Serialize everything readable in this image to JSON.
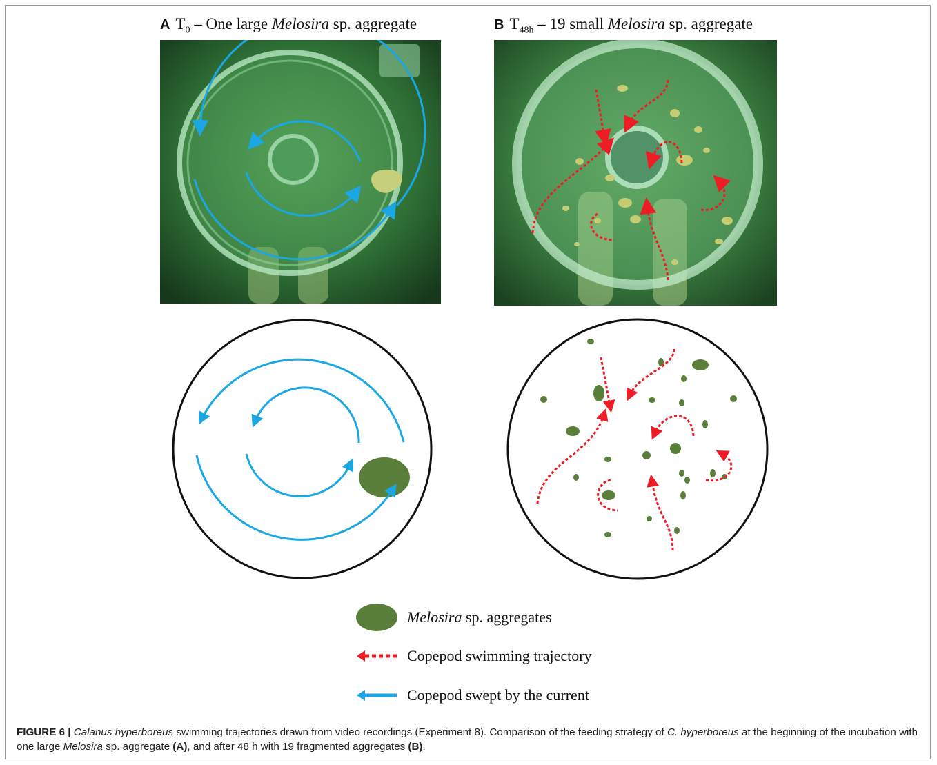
{
  "panel_a": {
    "letter": "A",
    "time_base": "T",
    "time_sub": "0",
    "title_pre": " – One large ",
    "title_italic": "Melosira",
    "title_post": " sp. aggregate"
  },
  "panel_b": {
    "letter": "B",
    "time_base": "T",
    "time_sub": "48h",
    "title_pre": " – 19 small ",
    "title_italic": "Melosira",
    "title_post": " sp. aggregate"
  },
  "legend": {
    "aggregates_italic": "Melosira",
    "aggregates_rest": " sp. aggregates",
    "trajectory": "Copepod swimming trajectory",
    "current": "Copepod swept by the current"
  },
  "colors": {
    "aggregate": "#5a7f3a",
    "trajectory": "#ee1c24",
    "current": "#1aa7e4"
  },
  "caption": {
    "label": "FIGURE 6 |",
    "s1_italic": "Calanus hyperboreus",
    "s2": " swimming trajectories drawn from video recordings (Experiment 8). Comparison of the feeding strategy of ",
    "s3_italic": "C. hyperboreus",
    "s4": " at the beginning of the incubation with one large ",
    "s5_italic": "Melosira",
    "s6": " sp. aggregate ",
    "s7_bold": "(A)",
    "s8": ", and after 48 h with 19 fragmented aggregates ",
    "s9_bold": "(B)",
    "s10": "."
  }
}
